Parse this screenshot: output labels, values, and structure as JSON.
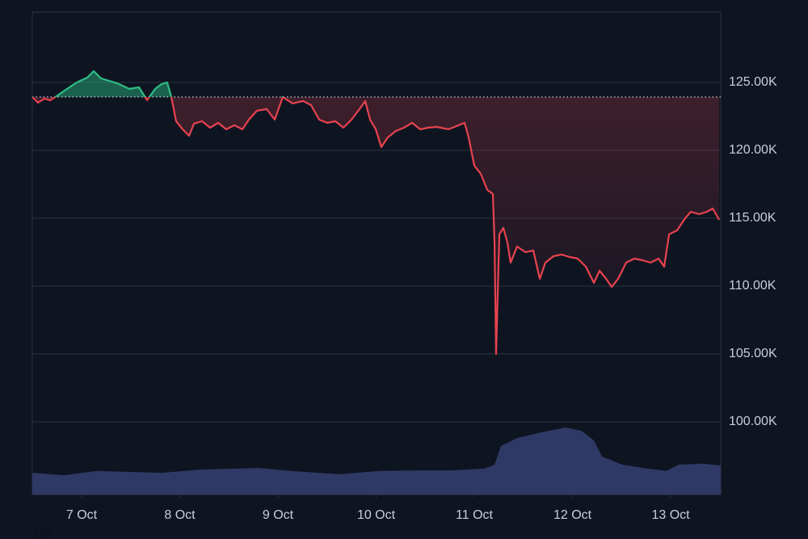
{
  "chart_data": {
    "type": "line",
    "x_unit_note_free": null,
    "xlim": [
      -0.502,
      6.51
    ],
    "xticks": [
      {
        "value": 0,
        "label": "7 Oct"
      },
      {
        "value": 1,
        "label": "8 Oct"
      },
      {
        "value": 2,
        "label": "9 Oct"
      },
      {
        "value": 3,
        "label": "10 Oct"
      },
      {
        "value": 4,
        "label": "11 Oct"
      },
      {
        "value": 5,
        "label": "12 Oct"
      },
      {
        "value": 6,
        "label": "13 Oct"
      }
    ],
    "ylim": [
      94643,
      130179
    ],
    "yticks": [
      {
        "value": 100000,
        "label": "100.00K"
      },
      {
        "value": 105000,
        "label": "105.00K"
      },
      {
        "value": 110000,
        "label": "110.00K"
      },
      {
        "value": 115000,
        "label": "115.00K"
      },
      {
        "value": 120000,
        "label": "120.00K"
      },
      {
        "value": 125000,
        "label": "125.00K"
      }
    ],
    "y2lim": [
      0,
      100
    ],
    "grid": true,
    "baseline": 123930,
    "above_color": "#2ebd85",
    "below_color": "#e8424f",
    "series": [
      {
        "name": "Price",
        "x": [
          -0.502,
          -0.444,
          -0.379,
          -0.321,
          -0.255,
          -0.173,
          -0.049,
          0.058,
          0.123,
          0.198,
          0.28,
          0.362,
          0.486,
          0.584,
          0.667,
          0.749,
          0.815,
          0.872,
          0.914,
          0.963,
          1.029,
          1.095,
          1.144,
          1.226,
          1.309,
          1.391,
          1.473,
          1.556,
          1.638,
          1.704,
          1.786,
          1.885,
          1.967,
          2.049,
          2.148,
          2.255,
          2.337,
          2.42,
          2.502,
          2.584,
          2.667,
          2.749,
          2.831,
          2.889,
          2.938,
          2.996,
          3.053,
          3.119,
          3.202,
          3.284,
          3.366,
          3.449,
          3.531,
          3.613,
          3.737,
          3.819,
          3.901,
          3.942,
          4.0,
          4.066,
          4.132,
          4.189,
          4.206,
          4.222,
          4.255,
          4.296,
          4.337,
          4.37,
          4.436,
          4.519,
          4.601,
          4.667,
          4.724,
          4.807,
          4.889,
          4.971,
          5.053,
          5.136,
          5.218,
          5.276,
          5.342,
          5.399,
          5.465,
          5.547,
          5.63,
          5.712,
          5.794,
          5.877,
          5.934,
          5.984,
          6.066,
          6.148,
          6.206,
          6.288,
          6.37,
          6.428,
          6.494
        ],
        "values": [
          123930,
          123512,
          123810,
          123690,
          123988,
          124405,
          125000,
          125357,
          125833,
          125298,
          125119,
          124940,
          124524,
          124643,
          123690,
          124524,
          124881,
          125000,
          123929,
          122143,
          121548,
          121071,
          121964,
          122143,
          121667,
          122024,
          121548,
          121845,
          121548,
          122262,
          122917,
          123036,
          122262,
          123929,
          123452,
          123631,
          123333,
          122262,
          122024,
          122143,
          121667,
          122262,
          123036,
          123631,
          122262,
          121548,
          120238,
          120952,
          121429,
          121667,
          122024,
          121548,
          121667,
          121726,
          121548,
          121786,
          122024,
          120952,
          118869,
          118274,
          117083,
          116786,
          113214,
          105000,
          113810,
          114286,
          113214,
          111726,
          112917,
          112500,
          112619,
          110536,
          111726,
          112202,
          112321,
          112143,
          112024,
          111429,
          110238,
          111131,
          110536,
          109940,
          110536,
          111726,
          112024,
          111905,
          111726,
          112024,
          111429,
          113810,
          114107,
          115000,
          115476,
          115298,
          115476,
          115714,
          114881
        ]
      },
      {
        "name": "Volume",
        "axis": "y2",
        "color": "#2f3965",
        "x": [
          -0.502,
          -0.173,
          0.156,
          0.815,
          1.226,
          1.802,
          2.132,
          2.626,
          3.037,
          3.449,
          3.778,
          4.107,
          4.206,
          4.272,
          4.436,
          4.683,
          4.93,
          5.095,
          5.218,
          5.3,
          5.506,
          5.753,
          5.959,
          6.082,
          6.329,
          6.51
        ],
        "values": [
          4.5,
          4.0,
          4.9,
          4.5,
          5.2,
          5.5,
          4.9,
          4.2,
          4.9,
          5.0,
          5.0,
          5.4,
          6.2,
          10.1,
          11.7,
          12.9,
          13.9,
          13.2,
          11.2,
          7.9,
          6.2,
          5.4,
          4.9,
          6.2,
          6.4,
          6.0
        ]
      }
    ]
  },
  "footer_text": "124"
}
